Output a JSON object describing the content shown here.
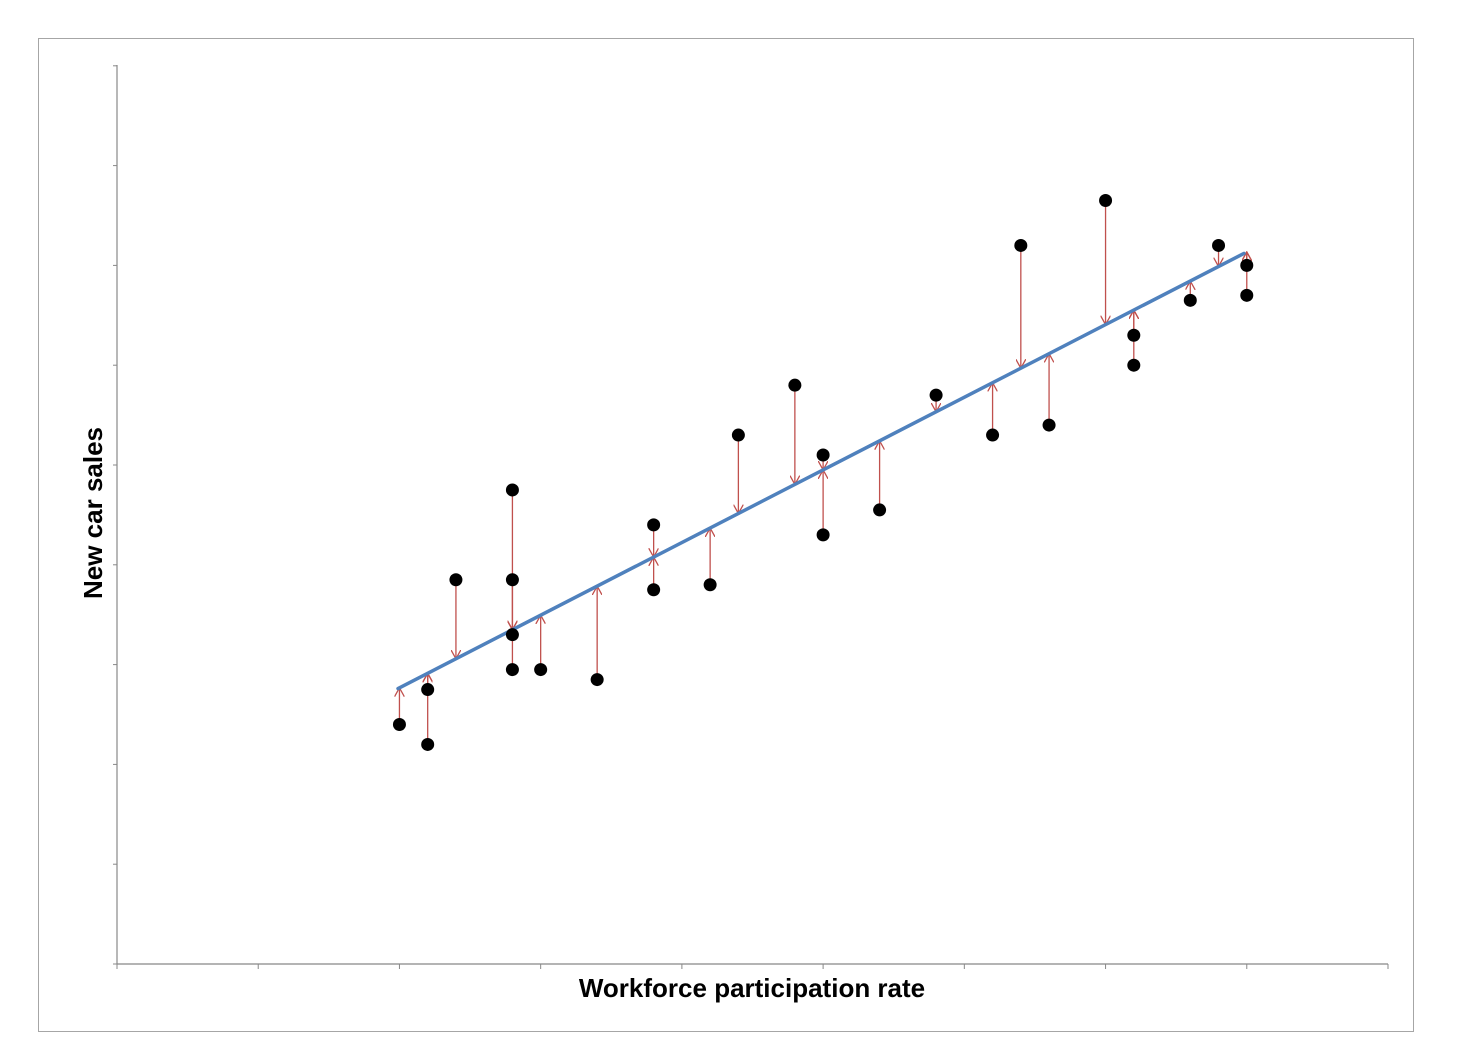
{
  "chart_data": {
    "type": "scatter",
    "title": "",
    "xlabel": "Workforce participation rate",
    "ylabel": "New car sales",
    "xlim": [
      0,
      9
    ],
    "ylim": [
      0,
      9
    ],
    "x_tick_labels_shown": false,
    "y_tick_labels_shown": false,
    "grid": false,
    "legend": "none",
    "colors": {
      "points": "#000000",
      "trend_line": "#4f81bd",
      "residual_arrows": "#c0504d",
      "axis": "#888888",
      "frame": "#a6a6a6"
    },
    "series": [
      {
        "type": "scatter",
        "points": [
          [
            2.0,
            2.4
          ],
          [
            2.2,
            2.2
          ],
          [
            2.2,
            2.75
          ],
          [
            2.4,
            3.85
          ],
          [
            2.8,
            4.75
          ],
          [
            2.8,
            3.85
          ],
          [
            2.8,
            3.3
          ],
          [
            2.8,
            2.95
          ],
          [
            3.0,
            2.95
          ],
          [
            3.4,
            2.85
          ],
          [
            3.8,
            4.4
          ],
          [
            3.8,
            3.75
          ],
          [
            4.2,
            3.8
          ],
          [
            4.4,
            5.3
          ],
          [
            4.8,
            5.8
          ],
          [
            5.0,
            5.1
          ],
          [
            5.0,
            4.3
          ],
          [
            5.4,
            4.55
          ],
          [
            5.8,
            5.7
          ],
          [
            6.2,
            5.3
          ],
          [
            6.4,
            7.2
          ],
          [
            6.6,
            5.4
          ],
          [
            7.0,
            7.65
          ],
          [
            7.2,
            6.3
          ],
          [
            7.2,
            6.0
          ],
          [
            7.6,
            6.65
          ],
          [
            7.8,
            7.2
          ],
          [
            8.0,
            7.0
          ],
          [
            8.0,
            6.7
          ]
        ]
      },
      {
        "type": "line",
        "points": [
          [
            1.99,
            2.76
          ],
          [
            7.98,
            7.12
          ]
        ]
      },
      {
        "type": "residuals",
        "description_of_marks": "arrows from each point toward the fitted line"
      }
    ]
  }
}
